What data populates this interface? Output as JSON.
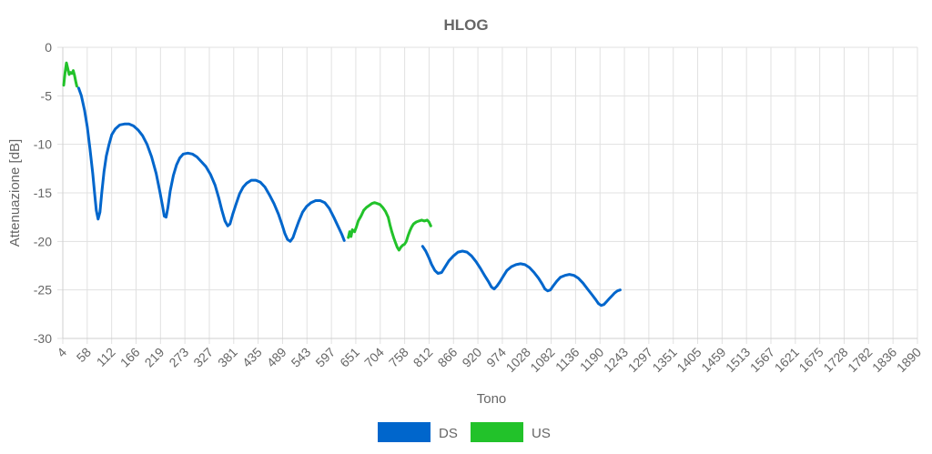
{
  "chart_data": {
    "type": "line",
    "title": "HLOG",
    "xlabel": "Tono",
    "ylabel": "Attenuazione [dB]",
    "xlim": [
      4,
      1890
    ],
    "ylim": [
      -30,
      0
    ],
    "grid": true,
    "legend_position": "bottom",
    "x_ticks": [
      "4",
      "58",
      "112",
      "166",
      "219",
      "273",
      "327",
      "381",
      "435",
      "489",
      "543",
      "597",
      "651",
      "704",
      "758",
      "812",
      "866",
      "920",
      "974",
      "1028",
      "1082",
      "1136",
      "1190",
      "1243",
      "1297",
      "1351",
      "1405",
      "1459",
      "1513",
      "1567",
      "1621",
      "1675",
      "1728",
      "1782",
      "1836",
      "1890"
    ],
    "y_ticks": [
      "0",
      "-5",
      "-10",
      "-15",
      "-20",
      "-25",
      "-30"
    ],
    "series": [
      {
        "name": "DS",
        "color": "#0066cc",
        "segments": [
          [
            [
              39,
              -4.2
            ],
            [
              45,
              -5.0
            ],
            [
              52,
              -6.5
            ],
            [
              58,
              -8.2
            ],
            [
              64,
              -10.5
            ],
            [
              70,
              -13.0
            ],
            [
              74,
              -15.0
            ],
            [
              78,
              -16.8
            ],
            [
              82,
              -17.7
            ],
            [
              86,
              -17.0
            ],
            [
              90,
              -15.0
            ],
            [
              95,
              -12.8
            ],
            [
              100,
              -11.2
            ],
            [
              106,
              -10.0
            ],
            [
              112,
              -9.0
            ],
            [
              120,
              -8.4
            ],
            [
              130,
              -8.0
            ],
            [
              140,
              -7.9
            ],
            [
              150,
              -7.9
            ],
            [
              160,
              -8.1
            ],
            [
              170,
              -8.5
            ],
            [
              180,
              -9.1
            ],
            [
              190,
              -10.0
            ],
            [
              200,
              -11.3
            ],
            [
              210,
              -13.0
            ],
            [
              218,
              -14.8
            ],
            [
              224,
              -16.3
            ],
            [
              228,
              -17.4
            ],
            [
              232,
              -17.5
            ],
            [
              236,
              -16.5
            ],
            [
              241,
              -14.8
            ],
            [
              248,
              -13.2
            ],
            [
              255,
              -12.1
            ],
            [
              262,
              -11.4
            ],
            [
              270,
              -11.0
            ],
            [
              280,
              -10.9
            ],
            [
              290,
              -11.0
            ],
            [
              300,
              -11.3
            ],
            [
              310,
              -11.8
            ],
            [
              320,
              -12.3
            ],
            [
              330,
              -13.1
            ],
            [
              340,
              -14.2
            ],
            [
              348,
              -15.5
            ],
            [
              355,
              -16.8
            ],
            [
              362,
              -17.9
            ],
            [
              368,
              -18.4
            ],
            [
              373,
              -18.2
            ],
            [
              379,
              -17.2
            ],
            [
              386,
              -16.2
            ],
            [
              394,
              -15.1
            ],
            [
              402,
              -14.4
            ],
            [
              410,
              -14.0
            ],
            [
              420,
              -13.7
            ],
            [
              430,
              -13.7
            ],
            [
              440,
              -13.9
            ],
            [
              450,
              -14.4
            ],
            [
              460,
              -15.2
            ],
            [
              470,
              -16.1
            ],
            [
              480,
              -17.2
            ],
            [
              488,
              -18.3
            ],
            [
              494,
              -19.2
            ],
            [
              500,
              -19.8
            ],
            [
              506,
              -20.0
            ],
            [
              512,
              -19.6
            ],
            [
              518,
              -18.8
            ],
            [
              525,
              -17.9
            ],
            [
              533,
              -17.0
            ],
            [
              542,
              -16.4
            ],
            [
              552,
              -16.0
            ],
            [
              562,
              -15.8
            ],
            [
              572,
              -15.8
            ],
            [
              582,
              -16.0
            ],
            [
              592,
              -16.6
            ],
            [
              602,
              -17.5
            ],
            [
              612,
              -18.5
            ],
            [
              620,
              -19.3
            ],
            [
              625,
              -19.9
            ]
          ],
          [
            [
              798,
              -20.5
            ],
            [
              805,
              -21.0
            ],
            [
              812,
              -21.7
            ],
            [
              818,
              -22.4
            ],
            [
              825,
              -23.0
            ],
            [
              832,
              -23.3
            ],
            [
              840,
              -23.2
            ],
            [
              848,
              -22.6
            ],
            [
              856,
              -22.0
            ],
            [
              866,
              -21.5
            ],
            [
              876,
              -21.1
            ],
            [
              886,
              -21.0
            ],
            [
              896,
              -21.1
            ],
            [
              906,
              -21.5
            ],
            [
              916,
              -22.1
            ],
            [
              926,
              -22.8
            ],
            [
              936,
              -23.6
            ],
            [
              944,
              -24.2
            ],
            [
              950,
              -24.7
            ],
            [
              956,
              -24.9
            ],
            [
              962,
              -24.6
            ],
            [
              968,
              -24.2
            ],
            [
              976,
              -23.6
            ],
            [
              984,
              -23.0
            ],
            [
              994,
              -22.6
            ],
            [
              1004,
              -22.4
            ],
            [
              1014,
              -22.3
            ],
            [
              1024,
              -22.4
            ],
            [
              1034,
              -22.7
            ],
            [
              1044,
              -23.2
            ],
            [
              1054,
              -23.8
            ],
            [
              1062,
              -24.4
            ],
            [
              1068,
              -24.9
            ],
            [
              1074,
              -25.1
            ],
            [
              1080,
              -25.0
            ],
            [
              1086,
              -24.6
            ],
            [
              1094,
              -24.1
            ],
            [
              1102,
              -23.7
            ],
            [
              1112,
              -23.5
            ],
            [
              1122,
              -23.4
            ],
            [
              1132,
              -23.5
            ],
            [
              1142,
              -23.8
            ],
            [
              1152,
              -24.3
            ],
            [
              1162,
              -24.9
            ],
            [
              1172,
              -25.5
            ],
            [
              1180,
              -26.0
            ],
            [
              1186,
              -26.4
            ],
            [
              1192,
              -26.6
            ],
            [
              1198,
              -26.5
            ],
            [
              1204,
              -26.2
            ],
            [
              1210,
              -25.9
            ],
            [
              1216,
              -25.6
            ],
            [
              1222,
              -25.3
            ],
            [
              1228,
              -25.1
            ],
            [
              1234,
              -25.0
            ]
          ]
        ]
      },
      {
        "name": "US",
        "color": "#22c22a",
        "segments": [
          [
            [
              6,
              -3.9
            ],
            [
              9,
              -2.6
            ],
            [
              12,
              -1.6
            ],
            [
              15,
              -2.2
            ],
            [
              18,
              -2.8
            ],
            [
              21,
              -2.6
            ],
            [
              24,
              -2.7
            ],
            [
              27,
              -2.4
            ],
            [
              30,
              -2.9
            ],
            [
              33,
              -3.6
            ],
            [
              35,
              -4.0
            ]
          ],
          [
            [
              634,
              -19.6
            ],
            [
              637,
              -19.0
            ],
            [
              640,
              -19.5
            ],
            [
              643,
              -18.8
            ],
            [
              648,
              -19.0
            ],
            [
              652,
              -18.5
            ],
            [
              656,
              -17.9
            ],
            [
              662,
              -17.4
            ],
            [
              668,
              -16.8
            ],
            [
              674,
              -16.5
            ],
            [
              680,
              -16.3
            ],
            [
              686,
              -16.1
            ],
            [
              692,
              -16.0
            ],
            [
              698,
              -16.1
            ],
            [
              704,
              -16.2
            ],
            [
              710,
              -16.5
            ],
            [
              716,
              -16.9
            ],
            [
              722,
              -17.5
            ],
            [
              726,
              -18.3
            ],
            [
              730,
              -19.0
            ],
            [
              734,
              -19.6
            ],
            [
              738,
              -20.1
            ],
            [
              742,
              -20.6
            ],
            [
              746,
              -20.9
            ],
            [
              750,
              -20.6
            ],
            [
              754,
              -20.4
            ],
            [
              758,
              -20.3
            ],
            [
              762,
              -20.0
            ],
            [
              766,
              -19.4
            ],
            [
              770,
              -18.9
            ],
            [
              774,
              -18.5
            ],
            [
              778,
              -18.2
            ],
            [
              784,
              -18.0
            ],
            [
              790,
              -17.9
            ],
            [
              796,
              -17.8
            ],
            [
              802,
              -17.9
            ],
            [
              808,
              -17.8
            ],
            [
              812,
              -18.0
            ],
            [
              816,
              -18.4
            ]
          ]
        ]
      }
    ]
  }
}
